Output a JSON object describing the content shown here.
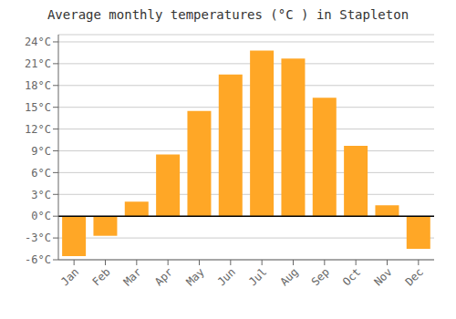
{
  "chart_data": {
    "type": "bar",
    "title": "Average monthly temperatures (°C ) in Stapleton",
    "categories": [
      "Jan",
      "Feb",
      "Mar",
      "Apr",
      "May",
      "Jun",
      "Jul",
      "Aug",
      "Sep",
      "Oct",
      "Nov",
      "Dec"
    ],
    "values": [
      -5.5,
      -2.7,
      2.0,
      8.5,
      14.5,
      19.5,
      22.8,
      21.7,
      16.3,
      9.7,
      1.5,
      -4.5
    ],
    "color": "#FFA726",
    "ylim": [
      -6,
      25
    ],
    "yticks": [
      {
        "value": -6,
        "label": "-6°C"
      },
      {
        "value": -3,
        "label": "-3°C"
      },
      {
        "value": 0,
        "label": "0°C"
      },
      {
        "value": 3,
        "label": "3°C"
      },
      {
        "value": 6,
        "label": "6°C"
      },
      {
        "value": 9,
        "label": "9°C"
      },
      {
        "value": 12,
        "label": "12°C"
      },
      {
        "value": 15,
        "label": "15°C"
      },
      {
        "value": 18,
        "label": "18°C"
      },
      {
        "value": 21,
        "label": "21°C"
      },
      {
        "value": 24,
        "label": "24°C"
      }
    ],
    "grid": true
  }
}
